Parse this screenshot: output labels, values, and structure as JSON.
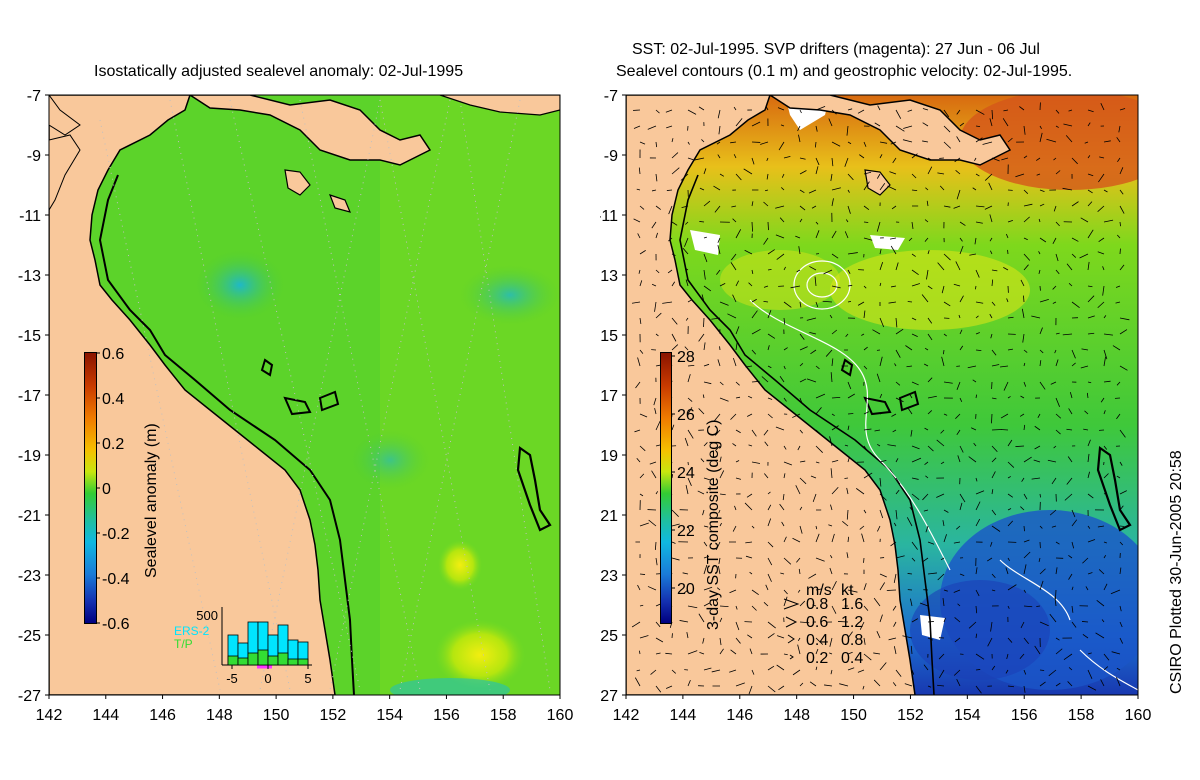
{
  "left_panel": {
    "title": "Isostatically adjusted sealevel anomaly: 02-Jul-1995",
    "colorbar": {
      "label": "Sealevel anomaly (m)",
      "ticks": [
        "0.6",
        "0.4",
        "0.2",
        "0",
        "-0.2",
        "-0.4",
        "-0.6"
      ]
    },
    "histogram": {
      "ymax_label": "500",
      "x_ticks": [
        "-5",
        "0",
        "5"
      ],
      "legend": [
        "ERS-2",
        "T/P"
      ],
      "colors": {
        "ers2": "#00e5ff",
        "tp": "#33dd33"
      },
      "ers2_values": [
        300,
        220,
        430,
        430,
        300,
        400,
        250,
        230
      ],
      "tp_values": [
        90,
        70,
        120,
        150,
        90,
        120,
        60,
        60
      ]
    }
  },
  "right_panel": {
    "title_line1": "SST: 02-Jul-1995. SVP drifters (magenta): 27 Jun - 06 Jul",
    "title_line2": "Sealevel contours (0.1 m) and geostrophic velocity: 02-Jul-1995.",
    "colorbar": {
      "label": "3-day SST composite (deg C)",
      "ticks": [
        "28",
        "26",
        "24",
        "22",
        "20"
      ]
    },
    "velocity_legend": {
      "header_ms": "m/s",
      "header_kt": "kt",
      "rows": [
        {
          "ms": "0.8",
          "kt": "1.6"
        },
        {
          "ms": "0.6",
          "kt": "1.2"
        },
        {
          "ms": "0.4",
          "kt": "0.8"
        },
        {
          "ms": "0.2",
          "kt": "0.4"
        }
      ]
    }
  },
  "axes": {
    "lat_ticks": [
      "-7",
      "-9",
      "-11",
      "-13",
      "-15",
      "-17",
      "-19",
      "-21",
      "-23",
      "-25",
      "-27"
    ],
    "lon_ticks": [
      "142",
      "144",
      "146",
      "148",
      "150",
      "152",
      "154",
      "156",
      "158",
      "160"
    ]
  },
  "credit": "CSIRO Plotted 30-Jun-2005 20:58",
  "colors": {
    "land": "#f9c89b",
    "sea_green": "#4fce2f",
    "sea_light": "#7ddc1f",
    "cyan": "#34c8b8",
    "coast": "#000000"
  }
}
